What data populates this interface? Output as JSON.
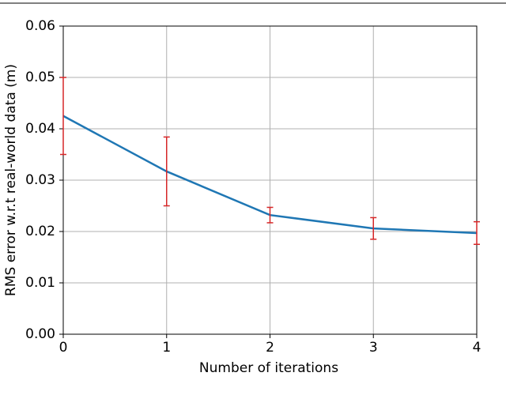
{
  "chart_data": {
    "type": "line",
    "xlabel": "Number of iterations",
    "ylabel": "RMS error w.r.t real-world data (m)",
    "x": [
      0,
      1,
      2,
      3,
      4
    ],
    "series": [
      {
        "color": "#1f77b4",
        "error_color": "#d62728",
        "values": [
          0.0425,
          0.0317,
          0.0232,
          0.0206,
          0.0197
        ],
        "errors": [
          0.0075,
          0.0067,
          0.0015,
          0.0021,
          0.0022
        ]
      }
    ],
    "xlim": [
      0,
      4
    ],
    "ylim": [
      0,
      0.06
    ],
    "xticks": [
      0,
      1,
      2,
      3,
      4
    ],
    "yticks": [
      {
        "value": 0,
        "label": "0.00"
      },
      {
        "value": 0.01,
        "label": "0.01"
      },
      {
        "value": 0.02,
        "label": "0.02"
      },
      {
        "value": 0.03,
        "label": "0.03"
      },
      {
        "value": 0.04,
        "label": "0.04"
      },
      {
        "value": 0.05,
        "label": "0.05"
      },
      {
        "value": 0.06,
        "label": "0.06"
      }
    ],
    "grid": true
  }
}
